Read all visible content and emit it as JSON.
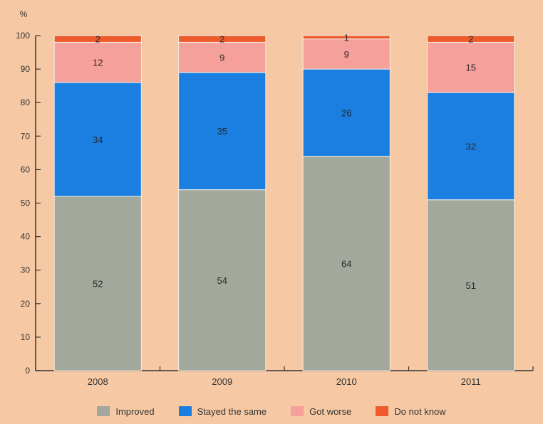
{
  "chart_data": {
    "type": "bar",
    "stacked": true,
    "unit_label": "%",
    "categories": [
      "2008",
      "2009",
      "2010",
      "2011"
    ],
    "ylim": [
      0,
      100
    ],
    "yticks": [
      0,
      10,
      20,
      30,
      40,
      50,
      60,
      70,
      80,
      90,
      100
    ],
    "series": [
      {
        "name": "Improved",
        "values": [
          52,
          54,
          64,
          51
        ],
        "color": "#a3a89c",
        "labels": [
          "52",
          "54",
          "64",
          "51"
        ]
      },
      {
        "name": "Stayed the same",
        "values": [
          34,
          35,
          26,
          32
        ],
        "color": "#1a7fe0",
        "labels": [
          "34",
          "35",
          "26",
          "32"
        ]
      },
      {
        "name": "Got worse",
        "values": [
          12,
          9,
          9,
          15
        ],
        "color": "#f5a09a",
        "labels": [
          "12",
          "9",
          "9",
          "15"
        ]
      },
      {
        "name": "Do not know",
        "values": [
          2,
          2,
          1,
          2
        ],
        "color": "#ee5a2c",
        "labels": [
          "2",
          "2",
          "1",
          "2"
        ]
      }
    ],
    "legend_position": "bottom",
    "grid": false
  }
}
